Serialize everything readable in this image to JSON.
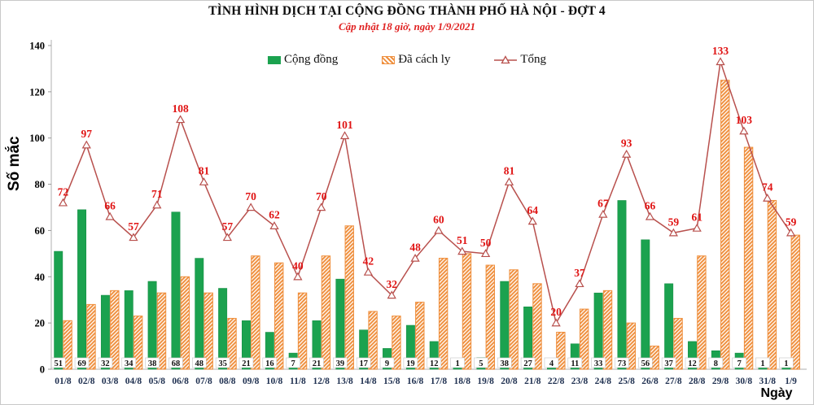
{
  "chart_data": {
    "type": "bar",
    "subtype": "grouped-bars-with-line",
    "title": "TÌNH HÌNH DỊCH TẠI CỘNG ĐỒNG THÀNH PHỐ HÀ NỘI - ĐỢT 4",
    "subtitle": "Cập nhật 18 giờ, ngày 1/9/2021",
    "xlabel": "Ngày",
    "ylabel": "Số mắc",
    "ylim": [
      0,
      140
    ],
    "ytick_step": 20,
    "yticks": [
      0,
      20,
      40,
      60,
      80,
      100,
      120,
      140
    ],
    "grid": false,
    "legend_position": "top-center",
    "categories": [
      "01/8",
      "02/8",
      "03/8",
      "04/8",
      "05/8",
      "06/8",
      "07/8",
      "08/8",
      "09/8",
      "10/8",
      "11/8",
      "12/8",
      "13/8",
      "14/8",
      "15/8",
      "16/8",
      "17/8",
      "18/8",
      "19/8",
      "20/8",
      "21/8",
      "22/8",
      "23/8",
      "24/8",
      "25/8",
      "26/8",
      "27/8",
      "28/8",
      "29/8",
      "30/8",
      "31/8",
      "1/9"
    ],
    "series": [
      {
        "name": "Cộng đồng",
        "type": "bar",
        "color": "#1ba24f",
        "data_labels": "shown-at-base",
        "values": [
          51,
          69,
          32,
          34,
          38,
          68,
          48,
          35,
          21,
          16,
          7,
          21,
          39,
          17,
          9,
          19,
          12,
          1,
          5,
          38,
          27,
          4,
          11,
          33,
          73,
          56,
          37,
          12,
          8,
          7,
          1,
          1
        ]
      },
      {
        "name": "Đã cách ly",
        "type": "bar",
        "style": "diagonal-hatch",
        "color": "#ef8f3d",
        "values": [
          21,
          28,
          34,
          23,
          33,
          40,
          33,
          22,
          49,
          46,
          33,
          49,
          62,
          25,
          23,
          29,
          48,
          50,
          45,
          43,
          37,
          16,
          26,
          34,
          20,
          10,
          22,
          49,
          125,
          96,
          73,
          58
        ]
      },
      {
        "name": "Tổng",
        "type": "line",
        "color": "#b8504d",
        "marker": "open-triangle",
        "label_color": "#e01414",
        "values": [
          72,
          97,
          66,
          57,
          71,
          108,
          81,
          57,
          70,
          62,
          40,
          70,
          101,
          42,
          32,
          48,
          60,
          51,
          50,
          81,
          64,
          20,
          37,
          67,
          93,
          66,
          59,
          61,
          133,
          103,
          74,
          59
        ]
      }
    ],
    "colors": {
      "subtitle": "#e02020",
      "axis_line": "#bfbfbf",
      "y_tick_label": "#000000",
      "x_tick_label": "#1f3050",
      "bar_value_label": "#111111"
    }
  }
}
